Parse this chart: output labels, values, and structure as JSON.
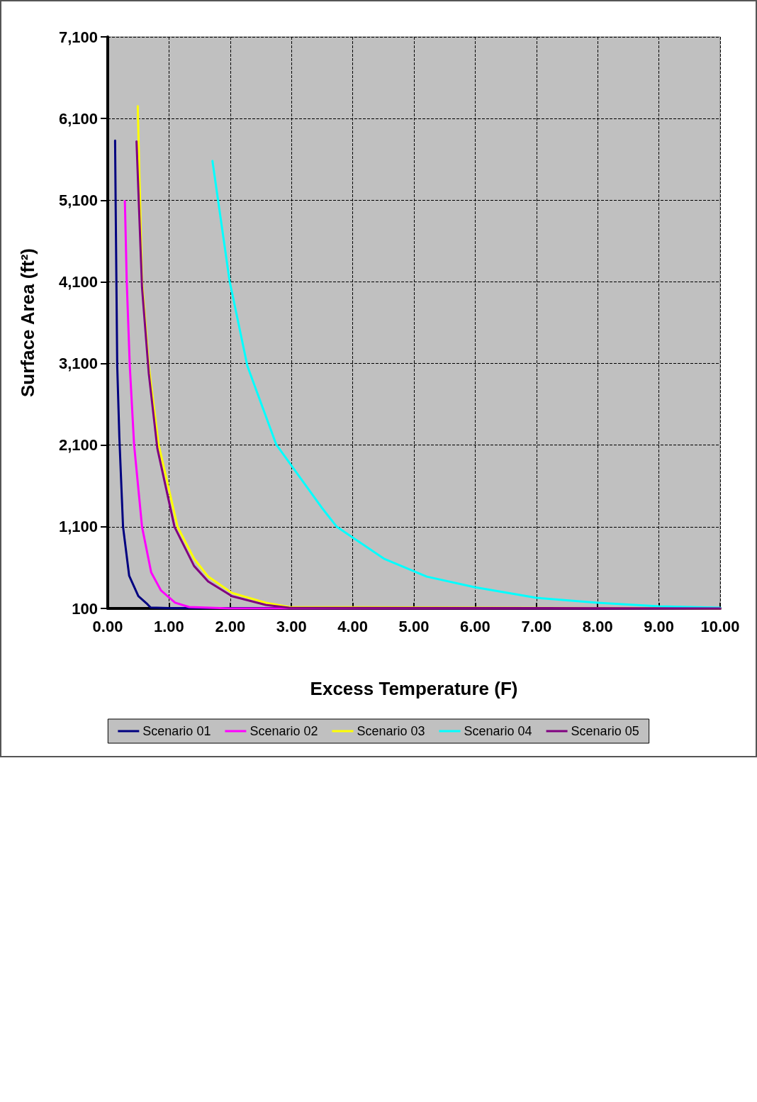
{
  "chart_data": {
    "type": "line",
    "xlabel": "Excess Temperature (F)",
    "ylabel": "Surface Area (ft²)",
    "xlim": [
      0,
      10
    ],
    "xticks": [
      {
        "value": 0,
        "label": "0.00"
      },
      {
        "value": 1,
        "label": "1.00"
      },
      {
        "value": 2,
        "label": "2.00"
      },
      {
        "value": 3,
        "label": "3.00"
      },
      {
        "value": 4,
        "label": "4.00"
      },
      {
        "value": 5,
        "label": "5.00"
      },
      {
        "value": 6,
        "label": "6.00"
      },
      {
        "value": 7,
        "label": "7.00"
      },
      {
        "value": 8,
        "label": "8.00"
      },
      {
        "value": 9,
        "label": "9.00"
      },
      {
        "value": 10,
        "label": "10.00"
      }
    ],
    "ylim": [
      100,
      7100
    ],
    "yticks": [
      100,
      {
        "value": 1100,
        "label": "1,100"
      },
      {
        "value": 2100,
        "label": "2,100"
      },
      {
        "value": 3100,
        "label": "3,100"
      },
      {
        "value": 4100,
        "label": "4,100"
      },
      {
        "value": 5100,
        "label": "5,100"
      },
      {
        "value": 6100,
        "label": "6,100"
      },
      {
        "value": 7100,
        "label": "7,100"
      }
    ],
    "grid": true,
    "legend": "bottom",
    "marker": "none",
    "line_style": "solid",
    "series": [
      {
        "name": "Scenario 01",
        "color": "#000080",
        "x": [
          0.12,
          0.13,
          0.155,
          0.19,
          0.25,
          0.35,
          0.5,
          0.65,
          0.7,
          1,
          10
        ],
        "values": [
          5830,
          4990,
          3070,
          2190,
          1100,
          500,
          250,
          150,
          110,
          105,
          100
        ]
      },
      {
        "name": "Scenario 02",
        "color": "#ff00ff",
        "x": [
          0.28,
          0.31,
          0.36,
          0.43,
          0.56,
          0.71,
          0.87,
          1.1,
          1.33,
          2,
          10
        ],
        "values": [
          5090,
          4110,
          3070,
          2110,
          1100,
          540,
          320,
          170,
          117,
          100,
          100
        ]
      },
      {
        "name": "Scenario 03",
        "color": "#ffff00",
        "x": [
          0.49,
          0.56,
          0.67,
          0.83,
          1.14,
          1.41,
          1.64,
          2.03,
          2.58,
          2.96,
          10
        ],
        "values": [
          6250,
          4110,
          3070,
          2110,
          1100,
          710,
          490,
          290,
          170,
          117,
          100
        ]
      },
      {
        "name": "Scenario 04",
        "color": "#00ffff",
        "x": [
          1.71,
          1.99,
          2.28,
          2.75,
          3.51,
          3.74,
          4.51,
          5.21,
          5.99,
          7,
          8,
          9,
          10
        ],
        "values": [
          5580,
          4110,
          3070,
          2110,
          1320,
          1100,
          710,
          490,
          360,
          230,
          170,
          126,
          109
        ]
      },
      {
        "name": "Scenario 05",
        "color": "#800080",
        "x": [
          0.47,
          0.56,
          0.67,
          0.81,
          1.09,
          1.41,
          1.64,
          2.03,
          2.58,
          2.96,
          10
        ],
        "values": [
          5820,
          4030,
          2980,
          2060,
          1100,
          620,
          430,
          250,
          144,
          109,
          100
        ]
      }
    ]
  }
}
